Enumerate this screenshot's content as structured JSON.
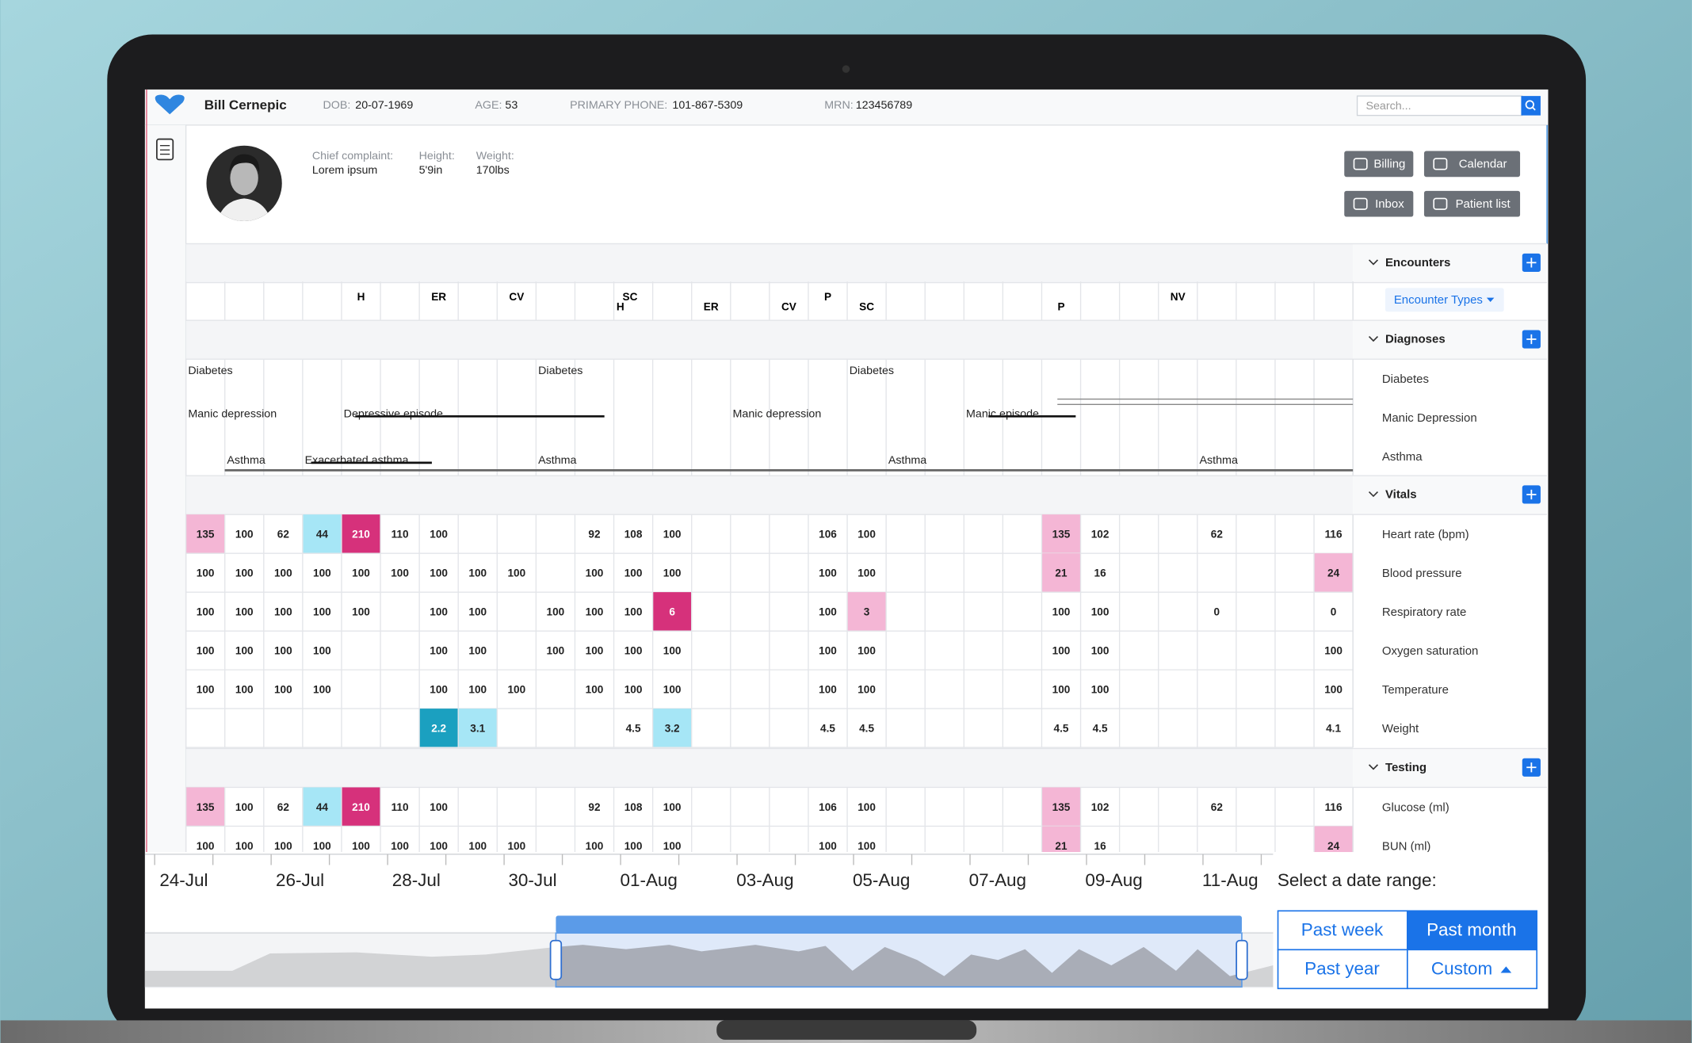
{
  "header": {
    "name": "Bill Cernepic",
    "fields": [
      {
        "label": "DOB:",
        "value": "20-07-1969"
      },
      {
        "label": "AGE:",
        "value": "53"
      },
      {
        "label": "PRIMARY PHONE:",
        "value": "101-867-5309"
      },
      {
        "label": "MRN:",
        "value": "123456789"
      }
    ],
    "search_placeholder": "Search..."
  },
  "patient": {
    "fields": [
      {
        "label": "Chief complaint:",
        "value": "Lorem ipsum"
      },
      {
        "label": "Height:",
        "value": "5'9in"
      },
      {
        "label": "Weight:",
        "value": "170lbs"
      }
    ]
  },
  "actions": [
    "Billing",
    "Calendar",
    "Inbox",
    "Patient list"
  ],
  "encounters": {
    "title": "Encounters",
    "filter": "Encounter Types",
    "codes": [
      null,
      null,
      null,
      null,
      "H",
      null,
      "ER",
      null,
      "CV",
      null,
      null,
      [
        "SC",
        "H"
      ],
      null,
      "ER",
      null,
      "CV",
      "P",
      "SC",
      null,
      null,
      null,
      null,
      "P",
      null,
      null,
      "NV",
      null,
      null,
      null,
      null
    ]
  },
  "diagnoses": {
    "title": "Diagnoses",
    "rows": [
      {
        "label": "Diabetes",
        "cells": [
          "Diabetes",
          null,
          null,
          null,
          null,
          null,
          null,
          null,
          null,
          "Diabetes",
          null,
          null,
          null,
          null,
          null,
          null,
          null,
          "Diabetes",
          null,
          null,
          null,
          null,
          null,
          null,
          null,
          null,
          null,
          null,
          null,
          null
        ]
      },
      {
        "label": "Manic Depression",
        "cells": [
          "Manic depression",
          null,
          null,
          null,
          "Depressive episode",
          null,
          null,
          null,
          null,
          null,
          null,
          null,
          null,
          null,
          "Manic depression",
          null,
          null,
          null,
          null,
          null,
          "Manic episode",
          null,
          null,
          null,
          null,
          null,
          null,
          null,
          null,
          null
        ]
      },
      {
        "label": "Asthma",
        "cells": [
          null,
          "Asthma",
          null,
          "Exacerbated asthma",
          null,
          null,
          null,
          null,
          null,
          "Asthma",
          null,
          null,
          null,
          null,
          null,
          null,
          null,
          null,
          "Asthma",
          null,
          null,
          null,
          null,
          null,
          null,
          null,
          "Asthma",
          null,
          null,
          null
        ]
      }
    ]
  },
  "vitals": {
    "title": "Vitals",
    "rows": [
      {
        "label": "Heart rate (bpm)",
        "values": [
          135,
          100,
          62,
          44,
          210,
          110,
          100,
          null,
          null,
          null,
          92,
          108,
          100,
          null,
          null,
          null,
          106,
          100,
          null,
          null,
          null,
          null,
          135,
          102,
          null,
          null,
          62,
          null,
          null,
          116
        ],
        "colors": [
          "#f4b6d5",
          null,
          null,
          "#a6e6f6",
          "#d6317b",
          null,
          null,
          null,
          null,
          null,
          null,
          null,
          null,
          null,
          null,
          null,
          null,
          null,
          null,
          null,
          null,
          null,
          "#f4b6d5",
          null,
          null,
          null,
          null,
          null,
          null,
          null
        ]
      },
      {
        "label": "Blood pressure",
        "values": [
          100,
          100,
          100,
          100,
          100,
          100,
          100,
          100,
          100,
          null,
          100,
          100,
          100,
          null,
          null,
          null,
          100,
          100,
          null,
          null,
          null,
          null,
          21,
          16,
          null,
          null,
          null,
          null,
          null,
          24
        ],
        "colors": [
          null,
          null,
          null,
          null,
          null,
          null,
          null,
          null,
          null,
          null,
          null,
          null,
          null,
          null,
          null,
          null,
          null,
          null,
          null,
          null,
          null,
          null,
          "#f4b6d5",
          null,
          null,
          null,
          null,
          null,
          null,
          "#f4b6d5"
        ]
      },
      {
        "label": "Respiratory rate",
        "values": [
          100,
          100,
          100,
          100,
          100,
          null,
          100,
          100,
          null,
          100,
          100,
          100,
          6,
          null,
          null,
          null,
          100,
          3,
          null,
          null,
          null,
          null,
          100,
          100,
          null,
          null,
          0,
          null,
          null,
          0
        ],
        "colors": [
          null,
          null,
          null,
          null,
          null,
          null,
          null,
          null,
          null,
          null,
          null,
          null,
          "#d6317b",
          null,
          null,
          null,
          null,
          "#f4b6d5",
          null,
          null,
          null,
          null,
          null,
          null,
          null,
          null,
          null,
          null,
          null,
          null
        ]
      },
      {
        "label": "Oxygen saturation",
        "values": [
          100,
          100,
          100,
          100,
          null,
          null,
          100,
          100,
          null,
          100,
          100,
          100,
          100,
          null,
          null,
          null,
          100,
          100,
          null,
          null,
          null,
          null,
          100,
          100,
          null,
          null,
          null,
          null,
          null,
          100
        ],
        "colors": [
          null,
          null,
          null,
          null,
          null,
          null,
          null,
          null,
          null,
          null,
          null,
          null,
          null,
          null,
          null,
          null,
          null,
          null,
          null,
          null,
          null,
          null,
          null,
          null,
          null,
          null,
          null,
          null,
          null,
          null
        ]
      },
      {
        "label": "Temperature",
        "values": [
          100,
          100,
          100,
          100,
          null,
          null,
          100,
          100,
          100,
          null,
          100,
          100,
          100,
          null,
          null,
          null,
          100,
          100,
          null,
          null,
          null,
          null,
          100,
          100,
          null,
          null,
          null,
          null,
          null,
          100
        ],
        "colors": [
          null,
          null,
          null,
          null,
          null,
          null,
          null,
          null,
          null,
          null,
          null,
          null,
          null,
          null,
          null,
          null,
          null,
          null,
          null,
          null,
          null,
          null,
          null,
          null,
          null,
          null,
          null,
          null,
          null,
          null
        ]
      },
      {
        "label": "Weight",
        "values": [
          null,
          null,
          null,
          null,
          null,
          null,
          2.2,
          3.1,
          null,
          null,
          null,
          4.5,
          3.2,
          null,
          null,
          null,
          4.5,
          4.5,
          null,
          null,
          null,
          null,
          4.5,
          4.5,
          null,
          null,
          null,
          null,
          null,
          4.1
        ],
        "colors": [
          null,
          null,
          null,
          null,
          null,
          null,
          "#1ba0c0",
          "#a6e6f6",
          null,
          null,
          null,
          null,
          "#a6e6f6",
          null,
          null,
          null,
          null,
          null,
          null,
          null,
          null,
          null,
          null,
          null,
          null,
          null,
          null,
          null,
          null,
          null
        ]
      }
    ]
  },
  "testing": {
    "title": "Testing",
    "rows": [
      {
        "label": "Glucose (ml)",
        "values": [
          135,
          100,
          62,
          44,
          210,
          110,
          100,
          null,
          null,
          null,
          92,
          108,
          100,
          null,
          null,
          null,
          106,
          100,
          null,
          null,
          null,
          null,
          135,
          102,
          null,
          null,
          62,
          null,
          null,
          116
        ],
        "colors": [
          "#f4b6d5",
          null,
          null,
          "#a6e6f6",
          "#d6317b",
          null,
          null,
          null,
          null,
          null,
          null,
          null,
          null,
          null,
          null,
          null,
          null,
          null,
          null,
          null,
          null,
          null,
          "#f4b6d5",
          null,
          null,
          null,
          null,
          null,
          null,
          null
        ]
      },
      {
        "label": "BUN (ml)",
        "values": [
          100,
          100,
          100,
          100,
          100,
          100,
          100,
          100,
          100,
          null,
          100,
          100,
          100,
          null,
          null,
          null,
          100,
          100,
          null,
          null,
          null,
          null,
          21,
          16,
          null,
          null,
          null,
          null,
          null,
          24
        ],
        "colors": [
          null,
          null,
          null,
          null,
          null,
          null,
          null,
          null,
          null,
          null,
          null,
          null,
          null,
          null,
          null,
          null,
          null,
          null,
          null,
          null,
          null,
          null,
          "#f4b6d5",
          null,
          null,
          null,
          null,
          null,
          null,
          "#f4b6d5"
        ]
      }
    ]
  },
  "timeline": {
    "dates": [
      "24-Jul",
      "26-Jul",
      "28-Jul",
      "30-Jul",
      "01-Aug",
      "03-Aug",
      "05-Aug",
      "07-Aug",
      "09-Aug",
      "11-Aug"
    ],
    "prompt": "Select a date range:",
    "ranges": [
      "Past week",
      "Past month",
      "Past year",
      "Custom"
    ],
    "selected": "Past month"
  }
}
